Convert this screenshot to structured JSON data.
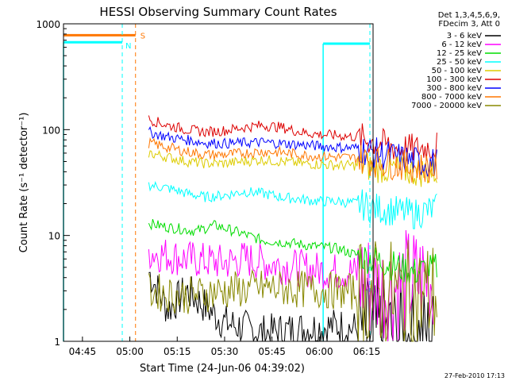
{
  "chart_data": {
    "type": "line",
    "title": "HESSI Observing Summary Count Rates",
    "xlabel": "Start Time (24-Jun-06 04:39:02)",
    "ylabel": "Count Rate (s⁻¹ detector⁻¹)",
    "yscale": "log",
    "ylim": [
      1,
      1000
    ],
    "xlim": [
      "04:39",
      "06:17"
    ],
    "x_ticks": [
      "04:45",
      "05:00",
      "05:15",
      "05:30",
      "05:45",
      "06:00",
      "06:15"
    ],
    "y_ticks": [
      "1",
      "10",
      "100",
      "1000"
    ],
    "legend_header": [
      "Det 1,3,4,5,6,9,",
      "FDecim 3, Att 0"
    ],
    "legend_position": "right",
    "series": [
      {
        "name": "3 - 6 keV",
        "color": "#000000",
        "values": [
          [
            5.1,
            4.5
          ],
          [
            5.2,
            2.0
          ],
          [
            5.3,
            3.0
          ],
          [
            5.5,
            1.5
          ],
          [
            5.7,
            1.2
          ],
          [
            5.9,
            1.3
          ],
          [
            6.1,
            1.4
          ],
          [
            6.3,
            1.2
          ],
          [
            6.5,
            1.1
          ],
          [
            6.6,
            1.0
          ]
        ]
      },
      {
        "name": "6 - 12 keV",
        "color": "#ff00ff",
        "values": [
          [
            5.1,
            7.0
          ],
          [
            5.3,
            6.0
          ],
          [
            5.5,
            5.5
          ],
          [
            5.6,
            6.0
          ],
          [
            5.8,
            5.2
          ],
          [
            5.95,
            4.8
          ],
          [
            6.05,
            4.6
          ],
          [
            6.18,
            4.5
          ],
          [
            6.3,
            3.0
          ],
          [
            6.45,
            3.5
          ],
          [
            6.6,
            4.0
          ]
        ]
      },
      {
        "name": "12 - 25 keV",
        "color": "#00dd00",
        "values": [
          [
            5.1,
            13
          ],
          [
            5.2,
            12
          ],
          [
            5.35,
            11
          ],
          [
            5.45,
            12.5
          ],
          [
            5.55,
            11
          ],
          [
            5.7,
            9
          ],
          [
            5.85,
            8.5
          ],
          [
            5.95,
            8
          ],
          [
            6.1,
            7.5
          ],
          [
            6.2,
            6.5
          ],
          [
            6.35,
            5.5
          ],
          [
            6.5,
            4.5
          ],
          [
            6.62,
            5.0
          ]
        ]
      },
      {
        "name": "25 - 50 keV",
        "color": "#00ffff",
        "values": [
          [
            5.1,
            30
          ],
          [
            5.2,
            28
          ],
          [
            5.3,
            25
          ],
          [
            5.4,
            23
          ],
          [
            5.5,
            24
          ],
          [
            5.6,
            26
          ],
          [
            5.7,
            25
          ],
          [
            5.8,
            23
          ],
          [
            5.9,
            22
          ],
          [
            6.0,
            21
          ],
          [
            6.1,
            21
          ],
          [
            6.2,
            20
          ],
          [
            6.3,
            18
          ],
          [
            6.4,
            17
          ],
          [
            6.5,
            16
          ],
          [
            6.62,
            18
          ]
        ]
      },
      {
        "name": "50 - 100 keV",
        "color": "#ddcc00",
        "values": [
          [
            5.1,
            60
          ],
          [
            5.2,
            55
          ],
          [
            5.3,
            50
          ],
          [
            5.4,
            48
          ],
          [
            5.5,
            48
          ],
          [
            5.6,
            50
          ],
          [
            5.7,
            52
          ],
          [
            5.8,
            50
          ],
          [
            5.9,
            48
          ],
          [
            6.0,
            47
          ],
          [
            6.1,
            46
          ],
          [
            6.2,
            46
          ],
          [
            6.3,
            44
          ],
          [
            6.4,
            42
          ],
          [
            6.5,
            40
          ],
          [
            6.62,
            40
          ]
        ]
      },
      {
        "name": "100 - 300 keV",
        "color": "#dd0000",
        "values": [
          [
            5.1,
            125
          ],
          [
            5.2,
            110
          ],
          [
            5.3,
            100
          ],
          [
            5.4,
            95
          ],
          [
            5.5,
            98
          ],
          [
            5.6,
            105
          ],
          [
            5.7,
            110
          ],
          [
            5.8,
            105
          ],
          [
            5.9,
            95
          ],
          [
            6.0,
            90
          ],
          [
            6.1,
            88
          ],
          [
            6.2,
            85
          ],
          [
            6.3,
            75
          ],
          [
            6.4,
            68
          ],
          [
            6.5,
            65
          ],
          [
            6.62,
            70
          ]
        ]
      },
      {
        "name": "300 - 800 keV",
        "color": "#0000ff",
        "values": [
          [
            5.1,
            95
          ],
          [
            5.2,
            85
          ],
          [
            5.3,
            80
          ],
          [
            5.4,
            75
          ],
          [
            5.5,
            74
          ],
          [
            5.6,
            75
          ],
          [
            5.7,
            76
          ],
          [
            5.8,
            74
          ],
          [
            5.9,
            72
          ],
          [
            6.0,
            70
          ],
          [
            6.1,
            68
          ],
          [
            6.2,
            67
          ],
          [
            6.3,
            60
          ],
          [
            6.4,
            55
          ],
          [
            6.5,
            50
          ],
          [
            6.62,
            48
          ]
        ]
      },
      {
        "name": "800 - 7000 keV",
        "color": "#ff7700",
        "values": [
          [
            5.1,
            75
          ],
          [
            5.2,
            68
          ],
          [
            5.3,
            62
          ],
          [
            5.4,
            58
          ],
          [
            5.5,
            58
          ],
          [
            5.6,
            60
          ],
          [
            5.7,
            62
          ],
          [
            5.8,
            61
          ],
          [
            5.9,
            58
          ],
          [
            6.0,
            56
          ],
          [
            6.1,
            55
          ],
          [
            6.2,
            54
          ],
          [
            6.3,
            50
          ],
          [
            6.4,
            47
          ],
          [
            6.5,
            44
          ],
          [
            6.62,
            43
          ]
        ]
      },
      {
        "name": "7000 - 20000 keV",
        "color": "#888800",
        "values": [
          [
            5.1,
            3.0
          ],
          [
            5.2,
            2.8
          ],
          [
            5.3,
            2.7
          ],
          [
            5.5,
            3.0
          ],
          [
            5.7,
            3.2
          ],
          [
            5.9,
            3.1
          ],
          [
            6.1,
            3.0
          ],
          [
            6.3,
            2.8
          ],
          [
            6.5,
            2.6
          ],
          [
            6.62,
            2.8
          ]
        ]
      }
    ],
    "annotations": [
      {
        "label": "S",
        "color": "#ff7700"
      },
      {
        "label": "N",
        "color": "#00ffff"
      }
    ]
  },
  "footer": {
    "timestamp": "27-Feb-2010 17:13"
  }
}
